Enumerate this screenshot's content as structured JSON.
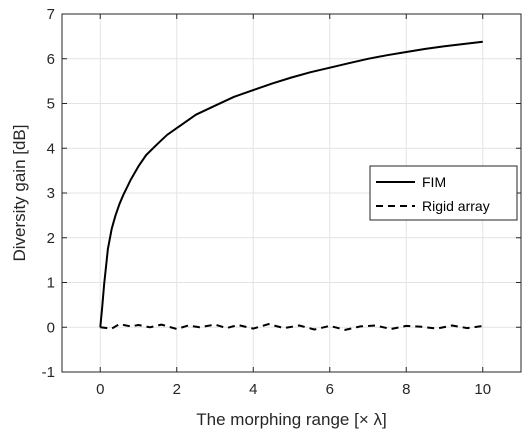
{
  "chart_data": {
    "type": "line",
    "title": "",
    "xlabel": "The morphing range [× λ]",
    "ylabel": "Diversity gain [dB]",
    "xlim": [
      -1,
      11
    ],
    "ylim": [
      -1,
      7
    ],
    "xticks": [
      0,
      2,
      4,
      6,
      8,
      10
    ],
    "yticks": [
      -1,
      0,
      1,
      2,
      3,
      4,
      5,
      6,
      7
    ],
    "grid": true,
    "legend_position": "right",
    "series": [
      {
        "name": "FIM",
        "style": "solid",
        "color": "#000000",
        "x": [
          0,
          0.05,
          0.1,
          0.2,
          0.3,
          0.4,
          0.5,
          0.6,
          0.8,
          1.0,
          1.2,
          1.5,
          1.75,
          2.0,
          2.25,
          2.5,
          3.0,
          3.5,
          4.0,
          4.5,
          5.0,
          5.5,
          6.0,
          6.5,
          7.0,
          7.5,
          8.0,
          8.5,
          9.0,
          9.5,
          10.0
        ],
        "y": [
          0.0,
          0.45,
          0.95,
          1.75,
          2.2,
          2.5,
          2.75,
          2.95,
          3.3,
          3.6,
          3.85,
          4.1,
          4.3,
          4.45,
          4.6,
          4.75,
          4.95,
          5.15,
          5.3,
          5.45,
          5.58,
          5.7,
          5.8,
          5.9,
          6.0,
          6.08,
          6.15,
          6.22,
          6.28,
          6.33,
          6.38
        ]
      },
      {
        "name": "Rigid array",
        "style": "dashed",
        "color": "#000000",
        "x": [
          0,
          0.3,
          0.5,
          0.8,
          1.0,
          1.3,
          1.6,
          2.0,
          2.3,
          2.6,
          3.0,
          3.3,
          3.6,
          4.0,
          4.4,
          4.8,
          5.2,
          5.6,
          6.0,
          6.4,
          6.8,
          7.2,
          7.6,
          8.0,
          8.4,
          8.8,
          9.2,
          9.6,
          10.0
        ],
        "y": [
          0.0,
          -0.03,
          0.07,
          0.02,
          0.05,
          0.0,
          0.06,
          -0.04,
          0.04,
          0.0,
          0.06,
          -0.02,
          0.05,
          -0.03,
          0.07,
          -0.02,
          0.04,
          -0.05,
          0.03,
          -0.06,
          0.02,
          0.04,
          -0.04,
          0.03,
          0.01,
          -0.03,
          0.04,
          -0.02,
          0.03
        ]
      }
    ]
  }
}
